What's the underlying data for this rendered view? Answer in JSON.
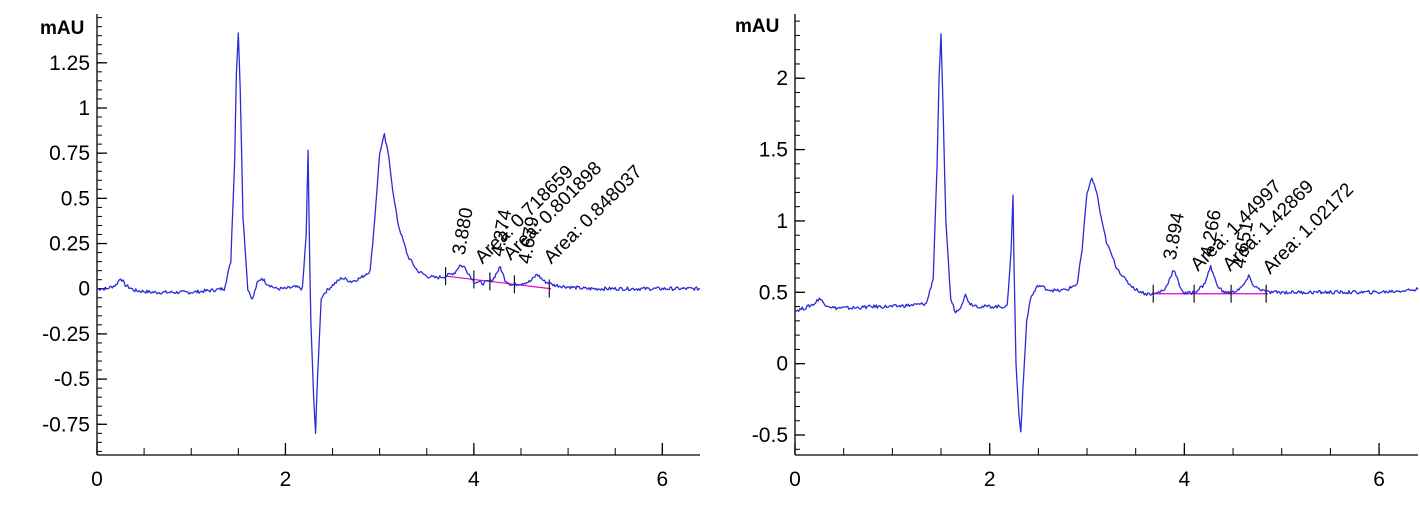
{
  "colors": {
    "trace": "#2b2bd8",
    "baseline": "#e000c8",
    "axis": "#000000",
    "background": "#ffffff"
  },
  "chart_data": [
    {
      "type": "line",
      "title": "",
      "xlabel": "",
      "ylabel": "mAU",
      "xlim": [
        0,
        6.4
      ],
      "ylim": [
        -0.92,
        1.52
      ],
      "grid": false,
      "xticks": [
        {
          "v": 0,
          "label": "0"
        },
        {
          "v": 2,
          "label": "2"
        },
        {
          "v": 4,
          "label": "4"
        },
        {
          "v": 6,
          "label": "6"
        }
      ],
      "yticks": [
        {
          "v": 1.25,
          "label": "1.25"
        },
        {
          "v": 1,
          "label": "1"
        },
        {
          "v": 0.75,
          "label": "0.75"
        },
        {
          "v": 0.5,
          "label": "0.5"
        },
        {
          "v": 0.25,
          "label": "0.25"
        },
        {
          "v": 0,
          "label": "0"
        },
        {
          "v": -0.25,
          "label": "-0.25"
        },
        {
          "v": -0.5,
          "label": "-0.5"
        },
        {
          "v": -0.75,
          "label": "-0.75"
        }
      ],
      "trace": {
        "x": [
          0,
          0.1,
          0.2,
          0.25,
          0.3,
          0.4,
          0.6,
          0.8,
          1.0,
          1.2,
          1.35,
          1.42,
          1.46,
          1.48,
          1.5,
          1.52,
          1.55,
          1.6,
          1.65,
          1.7,
          1.75,
          1.8,
          1.9,
          2.0,
          2.1,
          2.18,
          2.22,
          2.24,
          2.25,
          2.27,
          2.3,
          2.32,
          2.34,
          2.38,
          2.42,
          2.5,
          2.6,
          2.7,
          2.8,
          2.9,
          2.95,
          3.0,
          3.05,
          3.1,
          3.15,
          3.2,
          3.3,
          3.4,
          3.5,
          3.6,
          3.7,
          3.8,
          3.85,
          3.9,
          4.0,
          4.1,
          4.2,
          4.28,
          4.33,
          4.4,
          4.5,
          4.6,
          4.67,
          4.75,
          4.85,
          5.0,
          5.2,
          5.5,
          6.0,
          6.4
        ],
        "y": [
          0,
          0.0,
          0.02,
          0.06,
          0.02,
          -0.01,
          -0.02,
          -0.02,
          -0.02,
          -0.01,
          0.0,
          0.15,
          0.7,
          1.2,
          1.42,
          1.1,
          0.4,
          0.0,
          -0.06,
          0.03,
          0.06,
          0.03,
          0.0,
          0.0,
          0.01,
          0.0,
          0.3,
          0.76,
          0.4,
          -0.2,
          -0.6,
          -0.8,
          -0.5,
          -0.05,
          -0.02,
          0.02,
          0.06,
          0.04,
          0.06,
          0.1,
          0.4,
          0.75,
          0.85,
          0.72,
          0.5,
          0.35,
          0.18,
          0.1,
          0.07,
          0.06,
          0.07,
          0.09,
          0.13,
          0.12,
          0.04,
          0.03,
          0.05,
          0.12,
          0.05,
          0.02,
          0.03,
          0.04,
          0.08,
          0.04,
          0.02,
          0.01,
          0.0,
          0.0,
          0.0,
          0.0
        ]
      },
      "baseline": {
        "x": [
          3.7,
          4.82
        ],
        "y": [
          0.07,
          0.0
        ]
      },
      "integration_marks": [
        3.7,
        4.0,
        4.17,
        4.43,
        4.8
      ],
      "peak_labels": [
        {
          "x": 3.88,
          "y": 0.15,
          "text": "3.880"
        },
        {
          "x": 4.07,
          "y": 0.1,
          "text": "Area: 0.718659"
        },
        {
          "x": 4.29,
          "y": 0.14,
          "text": "4.274"
        },
        {
          "x": 4.37,
          "y": 0.12,
          "text": "Area: 0.801898"
        },
        {
          "x": 4.58,
          "y": 0.1,
          "text": "4.679"
        },
        {
          "x": 4.8,
          "y": 0.1,
          "text": "Area: 0.848037"
        }
      ]
    },
    {
      "type": "line",
      "title": "",
      "xlabel": "",
      "ylabel": "mAU",
      "xlim": [
        0,
        6.4
      ],
      "ylim": [
        -0.64,
        2.45
      ],
      "grid": false,
      "xticks": [
        {
          "v": 0,
          "label": "0"
        },
        {
          "v": 2,
          "label": "2"
        },
        {
          "v": 4,
          "label": "4"
        },
        {
          "v": 6,
          "label": "6"
        }
      ],
      "yticks": [
        {
          "v": 2,
          "label": "2"
        },
        {
          "v": 1.5,
          "label": "1.5"
        },
        {
          "v": 1,
          "label": "1"
        },
        {
          "v": 0.5,
          "label": "0.5"
        },
        {
          "v": 0,
          "label": "0"
        },
        {
          "v": -0.5,
          "label": "-0.5"
        }
      ],
      "trace": {
        "x": [
          0,
          0.1,
          0.2,
          0.25,
          0.3,
          0.4,
          0.6,
          0.8,
          1.0,
          1.2,
          1.35,
          1.42,
          1.46,
          1.48,
          1.5,
          1.52,
          1.55,
          1.6,
          1.65,
          1.7,
          1.75,
          1.8,
          1.9,
          2.0,
          2.1,
          2.18,
          2.22,
          2.24,
          2.25,
          2.27,
          2.3,
          2.32,
          2.34,
          2.38,
          2.42,
          2.5,
          2.6,
          2.7,
          2.8,
          2.9,
          2.95,
          3.0,
          3.05,
          3.1,
          3.15,
          3.2,
          3.3,
          3.4,
          3.5,
          3.6,
          3.7,
          3.8,
          3.89,
          3.95,
          4.0,
          4.1,
          4.2,
          4.27,
          4.33,
          4.4,
          4.5,
          4.6,
          4.66,
          4.72,
          4.85,
          5.0,
          5.2,
          5.5,
          6.0,
          6.4
        ],
        "y": [
          0.37,
          0.39,
          0.42,
          0.46,
          0.42,
          0.39,
          0.39,
          0.4,
          0.4,
          0.41,
          0.42,
          0.6,
          1.4,
          2.0,
          2.3,
          1.8,
          1.0,
          0.45,
          0.36,
          0.4,
          0.48,
          0.42,
          0.4,
          0.4,
          0.4,
          0.4,
          0.8,
          1.18,
          0.7,
          0.0,
          -0.35,
          -0.48,
          -0.2,
          0.3,
          0.46,
          0.55,
          0.52,
          0.51,
          0.52,
          0.56,
          0.8,
          1.2,
          1.3,
          1.2,
          1.0,
          0.85,
          0.68,
          0.58,
          0.52,
          0.49,
          0.49,
          0.52,
          0.66,
          0.55,
          0.49,
          0.5,
          0.55,
          0.68,
          0.56,
          0.5,
          0.5,
          0.54,
          0.61,
          0.54,
          0.5,
          0.5,
          0.5,
          0.5,
          0.5,
          0.52
        ]
      },
      "baseline": {
        "x": [
          3.68,
          4.86
        ],
        "y": [
          0.49,
          0.49
        ]
      },
      "integration_marks": [
        3.68,
        4.1,
        4.48,
        4.84
      ],
      "peak_labels": [
        {
          "x": 3.89,
          "y": 0.68,
          "text": "3.894"
        },
        {
          "x": 4.12,
          "y": 0.6,
          "text": "Area: 1.44997"
        },
        {
          "x": 4.27,
          "y": 0.7,
          "text": "4.266"
        },
        {
          "x": 4.45,
          "y": 0.6,
          "text": "Area: 1.42869"
        },
        {
          "x": 4.6,
          "y": 0.62,
          "text": "4.651"
        },
        {
          "x": 4.86,
          "y": 0.58,
          "text": "Area: 1.02172"
        }
      ]
    }
  ]
}
